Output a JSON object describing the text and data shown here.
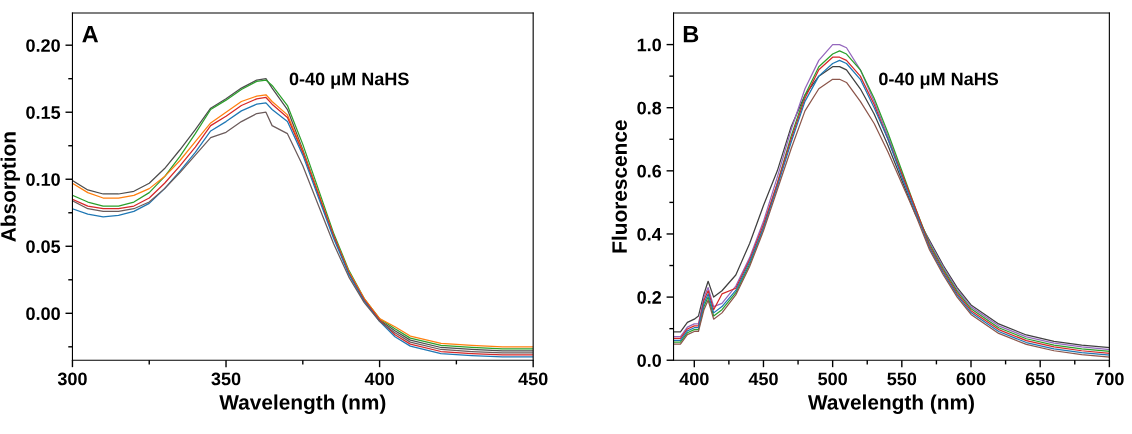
{
  "chart_data": [
    {
      "type": "line",
      "xlabel": "Wavelength (nm)",
      "ylabel": "Absorption",
      "annotations": [
        "A",
        "0-40 μM NaHS"
      ],
      "x": [
        300,
        305,
        310,
        315,
        320,
        325,
        330,
        335,
        340,
        345,
        350,
        355,
        360,
        363,
        365,
        370,
        375,
        380,
        385,
        390,
        395,
        400,
        405,
        410,
        420,
        430,
        440,
        450
      ],
      "series": [
        {
          "color": "#4d4d4d",
          "values": [
            0.099,
            0.092,
            0.089,
            0.089,
            0.091,
            0.097,
            0.108,
            0.122,
            0.137,
            0.153,
            0.16,
            0.168,
            0.174,
            0.175,
            0.168,
            0.152,
            0.122,
            0.09,
            0.058,
            0.03,
            0.01,
            -0.005,
            -0.013,
            -0.02,
            -0.0255,
            -0.027,
            -0.028,
            -0.028
          ]
        },
        {
          "color": "#2ca02c",
          "values": [
            0.088,
            0.083,
            0.08,
            0.08,
            0.083,
            0.09,
            0.102,
            0.117,
            0.134,
            0.152,
            0.159,
            0.167,
            0.173,
            0.174,
            0.17,
            0.155,
            0.126,
            0.093,
            0.06,
            0.032,
            0.011,
            -0.004,
            -0.0115,
            -0.0185,
            -0.024,
            -0.0255,
            -0.0265,
            -0.0265
          ]
        },
        {
          "color": "#ff7f0e",
          "values": [
            0.097,
            0.09,
            0.086,
            0.086,
            0.088,
            0.093,
            0.102,
            0.114,
            0.128,
            0.142,
            0.15,
            0.158,
            0.162,
            0.163,
            0.158,
            0.148,
            0.121,
            0.09,
            0.058,
            0.031,
            0.011,
            -0.004,
            -0.01,
            -0.017,
            -0.0225,
            -0.024,
            -0.025,
            -0.025
          ]
        },
        {
          "color": "#d62728",
          "values": [
            0.085,
            0.08,
            0.078,
            0.078,
            0.08,
            0.086,
            0.097,
            0.11,
            0.124,
            0.14,
            0.147,
            0.155,
            0.16,
            0.161,
            0.156,
            0.146,
            0.12,
            0.089,
            0.058,
            0.03,
            0.01,
            -0.005,
            -0.016,
            -0.023,
            -0.0285,
            -0.03,
            -0.031,
            -0.031
          ]
        },
        {
          "color": "#1f77b4",
          "values": [
            0.078,
            0.074,
            0.072,
            0.073,
            0.076,
            0.082,
            0.093,
            0.106,
            0.12,
            0.136,
            0.143,
            0.151,
            0.156,
            0.157,
            0.152,
            0.143,
            0.118,
            0.087,
            0.056,
            0.029,
            0.009,
            -0.006,
            -0.0175,
            -0.0245,
            -0.03,
            -0.0315,
            -0.0325,
            -0.0325
          ]
        },
        {
          "color": "#6b5b5b",
          "values": [
            0.084,
            0.078,
            0.076,
            0.076,
            0.078,
            0.083,
            0.093,
            0.105,
            0.118,
            0.131,
            0.135,
            0.143,
            0.149,
            0.15,
            0.14,
            0.134,
            0.11,
            0.081,
            0.052,
            0.027,
            0.008,
            -0.006,
            -0.0145,
            -0.0215,
            -0.027,
            -0.0285,
            -0.0295,
            -0.0295
          ]
        }
      ],
      "xlim": [
        300,
        450
      ],
      "ylim": [
        -0.035,
        0.224
      ],
      "xticks": [
        300,
        {
          "value": 325,
          "label": null
        },
        350,
        {
          "value": 375,
          "label": null
        },
        400,
        {
          "value": 425,
          "label": null
        },
        450
      ],
      "yticks": [
        {
          "value": -0.025,
          "label": null
        },
        {
          "value": 0,
          "label": "0.00"
        },
        {
          "value": 0.025,
          "label": null
        },
        {
          "value": 0.05,
          "label": "0.05"
        },
        {
          "value": 0.075,
          "label": null
        },
        {
          "value": 0.1,
          "label": "0.10"
        },
        {
          "value": 0.125,
          "label": null
        },
        {
          "value": 0.15,
          "label": "0.15"
        },
        {
          "value": 0.175,
          "label": null
        },
        {
          "value": 0.2,
          "label": "0.20"
        }
      ],
      "grid": false,
      "legend": false
    },
    {
      "type": "line",
      "xlabel": "Wavelength (nm)",
      "ylabel": "Fluorescence",
      "annotations": [
        "B",
        "0-40 μM NaHS"
      ],
      "x": [
        385,
        390,
        395,
        400,
        403,
        407,
        410,
        414,
        420,
        430,
        440,
        450,
        460,
        470,
        480,
        490,
        500,
        505,
        510,
        520,
        530,
        540,
        550,
        560,
        570,
        580,
        590,
        600,
        620,
        640,
        660,
        680,
        700
      ],
      "series": [
        {
          "color": "#404040",
          "values": [
            0.09,
            0.09,
            0.12,
            0.13,
            0.14,
            0.21,
            0.25,
            0.2,
            0.22,
            0.27,
            0.37,
            0.49,
            0.6,
            0.74,
            0.84,
            0.9,
            0.93,
            0.93,
            0.92,
            0.86,
            0.78,
            0.68,
            0.57,
            0.46,
            0.38,
            0.3,
            0.23,
            0.175,
            0.115,
            0.08,
            0.06,
            0.048,
            0.04
          ]
        },
        {
          "color": "#9467bd",
          "values": [
            0.075,
            0.075,
            0.105,
            0.115,
            0.115,
            0.2,
            0.23,
            0.17,
            0.18,
            0.235,
            0.325,
            0.44,
            0.58,
            0.73,
            0.86,
            0.95,
            1.0,
            1.0,
            0.99,
            0.92,
            0.82,
            0.71,
            0.59,
            0.47,
            0.374,
            0.294,
            0.224,
            0.169,
            0.109,
            0.074,
            0.054,
            0.042,
            0.034
          ]
        },
        {
          "color": "#2ca02c",
          "values": [
            0.057,
            0.057,
            0.087,
            0.097,
            0.097,
            0.17,
            0.2,
            0.14,
            0.16,
            0.214,
            0.304,
            0.42,
            0.56,
            0.71,
            0.84,
            0.93,
            0.97,
            0.98,
            0.97,
            0.92,
            0.83,
            0.72,
            0.6,
            0.48,
            0.368,
            0.288,
            0.218,
            0.163,
            0.103,
            0.068,
            0.048,
            0.036,
            0.028
          ]
        },
        {
          "color": "#d62728",
          "values": [
            0.069,
            0.069,
            0.099,
            0.109,
            0.109,
            0.19,
            0.22,
            0.16,
            0.21,
            0.228,
            0.318,
            0.43,
            0.56,
            0.7,
            0.83,
            0.92,
            0.96,
            0.96,
            0.95,
            0.9,
            0.81,
            0.7,
            0.59,
            0.48,
            0.362,
            0.282,
            0.212,
            0.157,
            0.097,
            0.062,
            0.042,
            0.03,
            0.022
          ]
        },
        {
          "color": "#1f77b4",
          "values": [
            0.063,
            0.063,
            0.093,
            0.103,
            0.103,
            0.18,
            0.21,
            0.15,
            0.17,
            0.221,
            0.311,
            0.42,
            0.55,
            0.69,
            0.82,
            0.9,
            0.94,
            0.95,
            0.94,
            0.89,
            0.8,
            0.7,
            0.58,
            0.47,
            0.356,
            0.276,
            0.206,
            0.151,
            0.091,
            0.056,
            0.036,
            0.024,
            0.016
          ]
        },
        {
          "color": "#8c564b",
          "values": [
            0.051,
            0.051,
            0.081,
            0.091,
            0.091,
            0.16,
            0.19,
            0.13,
            0.15,
            0.207,
            0.297,
            0.41,
            0.54,
            0.67,
            0.79,
            0.86,
            0.89,
            0.89,
            0.88,
            0.82,
            0.75,
            0.66,
            0.56,
            0.46,
            0.35,
            0.27,
            0.2,
            0.145,
            0.085,
            0.05,
            0.03,
            0.018,
            0.01
          ]
        }
      ],
      "xlim": [
        385,
        700
      ],
      "ylim": [
        0,
        1.1
      ],
      "xticks": [
        400,
        {
          "value": 425,
          "label": null
        },
        450,
        {
          "value": 475,
          "label": null
        },
        500,
        {
          "value": 525,
          "label": null
        },
        550,
        {
          "value": 575,
          "label": null
        },
        600,
        {
          "value": 625,
          "label": null
        },
        650,
        {
          "value": 675,
          "label": null
        },
        700
      ],
      "yticks": [
        {
          "value": 0,
          "label": "0.0"
        },
        {
          "value": 0.1,
          "label": null
        },
        {
          "value": 0.2,
          "label": "0.2"
        },
        {
          "value": 0.3,
          "label": null
        },
        {
          "value": 0.4,
          "label": "0.4"
        },
        {
          "value": 0.5,
          "label": null
        },
        {
          "value": 0.6,
          "label": "0.6"
        },
        {
          "value": 0.7,
          "label": null
        },
        {
          "value": 0.8,
          "label": "0.8"
        },
        {
          "value": 0.9,
          "label": null
        },
        {
          "value": 1.0,
          "label": "1.0"
        }
      ],
      "grid": false,
      "legend": false
    }
  ]
}
